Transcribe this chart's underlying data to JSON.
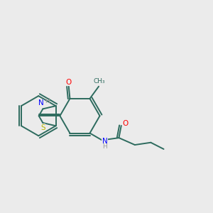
{
  "background_color": "#ebebeb",
  "bond_color": "#2d6b5e",
  "atom_colors": {
    "O": "#ff0000",
    "N": "#0000ff",
    "S": "#b8b800",
    "H": "#999999"
  },
  "figsize": [
    3.0,
    3.0
  ],
  "dpi": 100
}
